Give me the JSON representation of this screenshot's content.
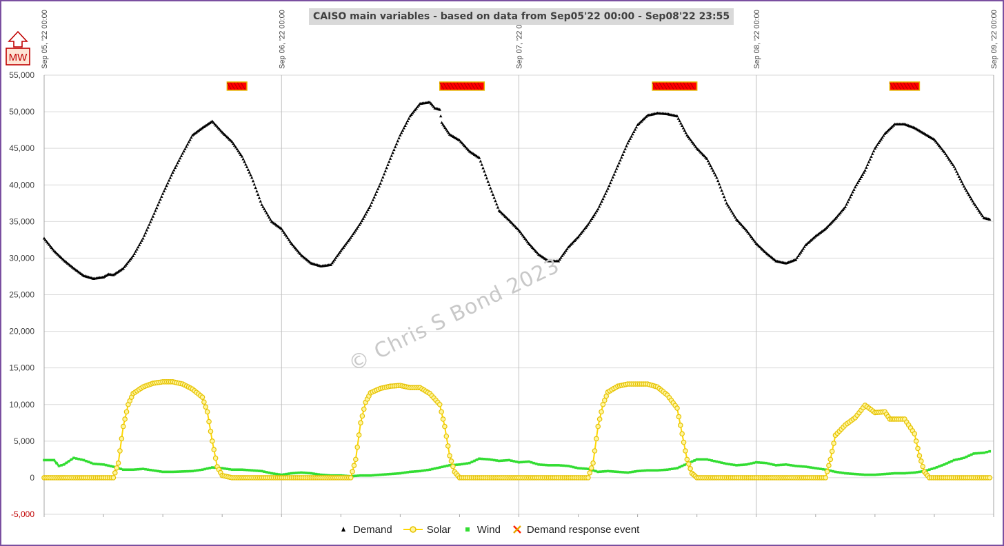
{
  "chart_data": {
    "type": "line",
    "title": "CAISO main variables - based on data from Sep05'22 00:00 - Sep08'22 23:55",
    "unit_label": "MW",
    "xlabel": "",
    "ylabel": "",
    "ylim": [
      -5000,
      55000
    ],
    "yticks": [
      55000,
      50000,
      45000,
      40000,
      35000,
      30000,
      25000,
      20000,
      15000,
      10000,
      5000,
      0,
      -5000
    ],
    "ytick_labels": [
      "55,000",
      "50,000",
      "45,000",
      "40,000",
      "35,000",
      "30,000",
      "25,000",
      "20,000",
      "15,000",
      "10,000",
      "5,000",
      "0",
      "-5,000"
    ],
    "negative_tick_color": "#c00000",
    "xlim_hours": [
      0,
      96
    ],
    "x_date_labels": [
      "Sep 05, '22 00:00",
      "Sep 06, '22 00:00",
      "Sep 07, '22 00:00",
      "Sep 08, '22 00:00",
      "Sep 09, '22 00:00"
    ],
    "grid": true,
    "legend_position": "bottom",
    "series": [
      {
        "name": "Demand",
        "color": "#000000",
        "marker": "triangle",
        "points_hour_mw": [
          [
            0,
            32700
          ],
          [
            1,
            31000
          ],
          [
            2,
            29700
          ],
          [
            3,
            28600
          ],
          [
            4,
            27600
          ],
          [
            5,
            27200
          ],
          [
            6,
            27400
          ],
          [
            6.5,
            27800
          ],
          [
            7,
            27700
          ],
          [
            8,
            28600
          ],
          [
            9,
            30300
          ],
          [
            10,
            32700
          ],
          [
            11,
            35700
          ],
          [
            12,
            38800
          ],
          [
            13,
            41700
          ],
          [
            14,
            44300
          ],
          [
            15,
            46800
          ],
          [
            16,
            47800
          ],
          [
            17,
            48700
          ],
          [
            18,
            47200
          ],
          [
            19,
            45900
          ],
          [
            20,
            43900
          ],
          [
            21,
            41000
          ],
          [
            22,
            37300
          ],
          [
            23,
            35000
          ],
          [
            24,
            34000
          ],
          [
            25,
            32000
          ],
          [
            26,
            30400
          ],
          [
            27,
            29300
          ],
          [
            28,
            28900
          ],
          [
            29,
            29100
          ],
          [
            30,
            31000
          ],
          [
            31,
            32800
          ],
          [
            32,
            34800
          ],
          [
            33,
            37200
          ],
          [
            34,
            40200
          ],
          [
            35,
            43600
          ],
          [
            36,
            46800
          ],
          [
            37,
            49400
          ],
          [
            38,
            51100
          ],
          [
            39,
            51300
          ],
          [
            39.5,
            50500
          ],
          [
            40,
            50300
          ],
          [
            40.2,
            48500
          ],
          [
            41,
            46900
          ],
          [
            42,
            46100
          ],
          [
            43,
            44600
          ],
          [
            44,
            43700
          ],
          [
            45,
            40000
          ],
          [
            46,
            36500
          ],
          [
            47,
            35200
          ],
          [
            48,
            33800
          ],
          [
            49,
            32000
          ],
          [
            50,
            30500
          ],
          [
            51,
            29600
          ],
          [
            52,
            29600
          ],
          [
            53,
            31500
          ],
          [
            54,
            32900
          ],
          [
            55,
            34600
          ],
          [
            56,
            36700
          ],
          [
            57,
            39500
          ],
          [
            58,
            42600
          ],
          [
            59,
            45700
          ],
          [
            60,
            48200
          ],
          [
            61,
            49500
          ],
          [
            62,
            49800
          ],
          [
            63,
            49700
          ],
          [
            64,
            49400
          ],
          [
            65,
            46800
          ],
          [
            66,
            45000
          ],
          [
            67,
            43600
          ],
          [
            68,
            41000
          ],
          [
            69,
            37500
          ],
          [
            70,
            35300
          ],
          [
            71,
            33800
          ],
          [
            72,
            32000
          ],
          [
            73,
            30700
          ],
          [
            74,
            29600
          ],
          [
            75,
            29300
          ],
          [
            76,
            29800
          ],
          [
            77,
            31800
          ],
          [
            78,
            33000
          ],
          [
            79,
            34000
          ],
          [
            80,
            35400
          ],
          [
            81,
            37000
          ],
          [
            82,
            39700
          ],
          [
            83,
            42000
          ],
          [
            84,
            45000
          ],
          [
            85,
            47000
          ],
          [
            86,
            48300
          ],
          [
            87,
            48300
          ],
          [
            88,
            47800
          ],
          [
            89,
            47000
          ],
          [
            90,
            46200
          ],
          [
            91,
            44500
          ],
          [
            92,
            42500
          ],
          [
            93,
            39800
          ],
          [
            94,
            37500
          ],
          [
            95,
            35500
          ],
          [
            95.6,
            35300
          ]
        ]
      },
      {
        "name": "Solar",
        "color": "#ffd700",
        "marker": "circle",
        "points_hour_mw": [
          [
            0,
            0
          ],
          [
            7,
            0
          ],
          [
            7.5,
            2000
          ],
          [
            8,
            7000
          ],
          [
            8.5,
            10000
          ],
          [
            9,
            11500
          ],
          [
            10,
            12400
          ],
          [
            11,
            12900
          ],
          [
            12,
            13100
          ],
          [
            13,
            13100
          ],
          [
            14,
            12800
          ],
          [
            15,
            12100
          ],
          [
            16,
            11000
          ],
          [
            16.5,
            9000
          ],
          [
            17,
            5000
          ],
          [
            17.5,
            1500
          ],
          [
            18,
            300
          ],
          [
            19,
            0
          ],
          [
            31,
            0
          ],
          [
            31.5,
            2500
          ],
          [
            32,
            7500
          ],
          [
            32.5,
            10300
          ],
          [
            33,
            11600
          ],
          [
            34,
            12200
          ],
          [
            35,
            12500
          ],
          [
            36,
            12600
          ],
          [
            37,
            12300
          ],
          [
            38,
            12300
          ],
          [
            39,
            11500
          ],
          [
            40,
            10000
          ],
          [
            40.5,
            7000
          ],
          [
            41,
            3000
          ],
          [
            41.5,
            800
          ],
          [
            42,
            0
          ],
          [
            55,
            0
          ],
          [
            55.5,
            2000
          ],
          [
            56,
            7000
          ],
          [
            56.5,
            10000
          ],
          [
            57,
            11700
          ],
          [
            58,
            12500
          ],
          [
            59,
            12800
          ],
          [
            60,
            12800
          ],
          [
            61,
            12800
          ],
          [
            62,
            12400
          ],
          [
            63,
            11300
          ],
          [
            64,
            9500
          ],
          [
            64.5,
            6000
          ],
          [
            65,
            2500
          ],
          [
            65.5,
            600
          ],
          [
            66,
            0
          ],
          [
            79,
            0
          ],
          [
            79.5,
            2500
          ],
          [
            80,
            5800
          ],
          [
            81,
            7200
          ],
          [
            82,
            8200
          ],
          [
            83,
            9900
          ],
          [
            84,
            8900
          ],
          [
            85,
            9000
          ],
          [
            85.5,
            8000
          ],
          [
            86,
            8000
          ],
          [
            87,
            8000
          ],
          [
            88,
            6000
          ],
          [
            88.5,
            3000
          ],
          [
            89,
            800
          ],
          [
            89.5,
            0
          ],
          [
            95.6,
            0
          ]
        ]
      },
      {
        "name": "Wind",
        "color": "#33dd33",
        "marker": "square",
        "points_hour_mw": [
          [
            0,
            2400
          ],
          [
            1,
            2400
          ],
          [
            1.5,
            1600
          ],
          [
            2,
            1800
          ],
          [
            3,
            2700
          ],
          [
            4,
            2400
          ],
          [
            5,
            1900
          ],
          [
            6,
            1800
          ],
          [
            7,
            1500
          ],
          [
            8,
            1100
          ],
          [
            9,
            1100
          ],
          [
            10,
            1200
          ],
          [
            11,
            1000
          ],
          [
            12,
            800
          ],
          [
            13,
            800
          ],
          [
            14,
            850
          ],
          [
            15,
            900
          ],
          [
            16,
            1100
          ],
          [
            17,
            1400
          ],
          [
            18,
            1300
          ],
          [
            19,
            1100
          ],
          [
            20,
            1100
          ],
          [
            21,
            1000
          ],
          [
            22,
            900
          ],
          [
            23,
            600
          ],
          [
            24,
            400
          ],
          [
            25,
            600
          ],
          [
            26,
            700
          ],
          [
            27,
            600
          ],
          [
            28,
            400
          ],
          [
            29,
            300
          ],
          [
            30,
            300
          ],
          [
            31,
            200
          ],
          [
            32,
            300
          ],
          [
            33,
            300
          ],
          [
            34,
            400
          ],
          [
            35,
            500
          ],
          [
            36,
            600
          ],
          [
            37,
            800
          ],
          [
            38,
            900
          ],
          [
            39,
            1100
          ],
          [
            40,
            1400
          ],
          [
            41,
            1700
          ],
          [
            42,
            1800
          ],
          [
            43,
            2000
          ],
          [
            44,
            2600
          ],
          [
            45,
            2500
          ],
          [
            46,
            2300
          ],
          [
            47,
            2400
          ],
          [
            48,
            2100
          ],
          [
            49,
            2200
          ],
          [
            50,
            1800
          ],
          [
            51,
            1700
          ],
          [
            52,
            1700
          ],
          [
            53,
            1600
          ],
          [
            54,
            1300
          ],
          [
            55,
            1200
          ],
          [
            56,
            800
          ],
          [
            57,
            900
          ],
          [
            58,
            800
          ],
          [
            59,
            700
          ],
          [
            60,
            900
          ],
          [
            61,
            1000
          ],
          [
            62,
            1000
          ],
          [
            63,
            1100
          ],
          [
            64,
            1300
          ],
          [
            65,
            1900
          ],
          [
            66,
            2500
          ],
          [
            67,
            2500
          ],
          [
            68,
            2200
          ],
          [
            69,
            1900
          ],
          [
            70,
            1700
          ],
          [
            71,
            1800
          ],
          [
            72,
            2100
          ],
          [
            73,
            2000
          ],
          [
            74,
            1700
          ],
          [
            75,
            1800
          ],
          [
            76,
            1600
          ],
          [
            77,
            1500
          ],
          [
            78,
            1300
          ],
          [
            79,
            1100
          ],
          [
            80,
            800
          ],
          [
            81,
            600
          ],
          [
            82,
            500
          ],
          [
            83,
            400
          ],
          [
            84,
            400
          ],
          [
            85,
            500
          ],
          [
            86,
            600
          ],
          [
            87,
            600
          ],
          [
            88,
            700
          ],
          [
            89,
            900
          ],
          [
            90,
            1300
          ],
          [
            91,
            1800
          ],
          [
            92,
            2400
          ],
          [
            93,
            2700
          ],
          [
            94,
            3300
          ],
          [
            95,
            3400
          ],
          [
            95.6,
            3600
          ]
        ]
      },
      {
        "name": "Demand response event",
        "color": "#ff0000",
        "marker_edge": "#e6b800",
        "marker": "x",
        "y_mw": 53500,
        "intervals_hour": [
          [
            18.5,
            20.5
          ],
          [
            40,
            44.5
          ],
          [
            61.5,
            66
          ],
          [
            85.5,
            88.5
          ]
        ]
      }
    ],
    "watermark": "© Chris S Bond  2023"
  }
}
